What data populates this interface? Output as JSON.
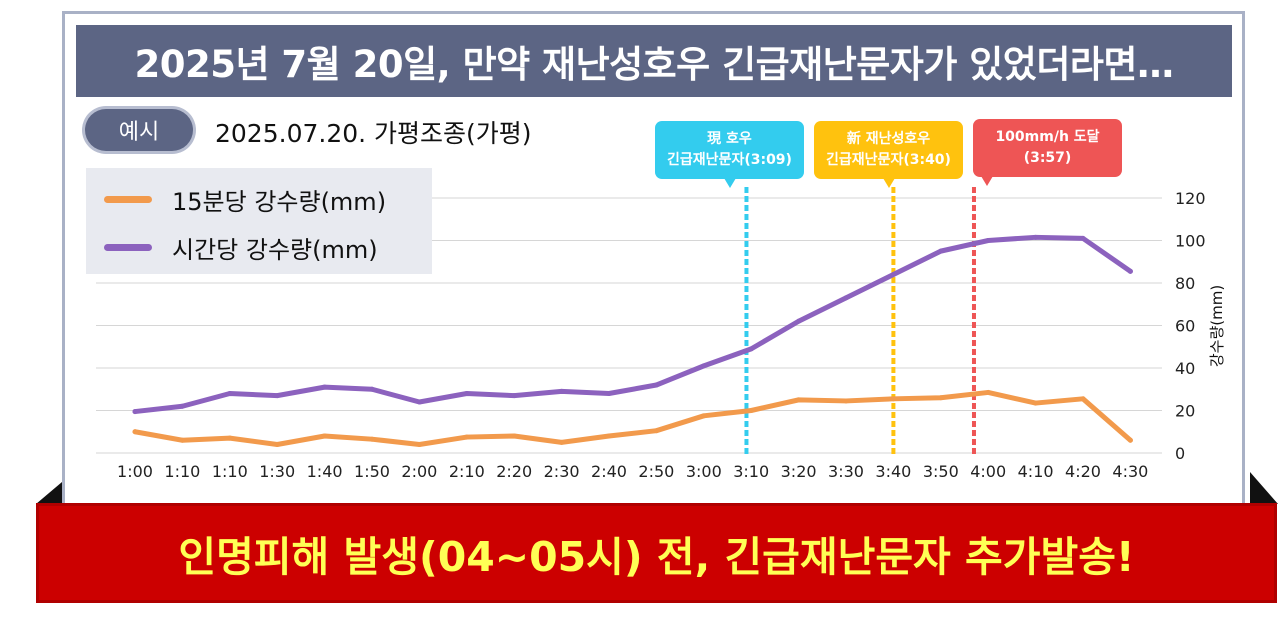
{
  "title": "2025년 7월 20일, 만약 재난성호우 긴급재난문자가 있었더라면…",
  "badge": "예시",
  "subtitle": "2025.07.20. 가평조종(가평)",
  "banner": "인명피해 발생(04~05시) 전, 긴급재난문자 추가발송!",
  "colors": {
    "fifteen_min": "#f29a4c",
    "hourly": "#8c62be",
    "alert_current": "#33ccee",
    "alert_new": "#ffc20e",
    "alert_100mm": "#ee5555",
    "title_bg": "#5c6584",
    "banner_bg": "#cc0000",
    "banner_text": "#ffff55"
  },
  "callouts": [
    {
      "line1": "現 호우",
      "line2": "긴급재난문자(3:09)",
      "x_index": 7.9,
      "color_key": "alert_current"
    },
    {
      "line1": "新 재난성호우",
      "line2": "긴급재난문자(3:40)",
      "x_index": 8.0,
      "color_key": "alert_new"
    },
    {
      "line1": "100mm/h 도달",
      "line2": "(3:57)",
      "x_index": 8.7,
      "color_key": "alert_100mm"
    }
  ],
  "chart_data": {
    "type": "line",
    "categories": [
      "1:00",
      "1:10",
      "1:10",
      "1:30",
      "1:40",
      "1:50",
      "2:00",
      "2:10",
      "2:20",
      "2:30",
      "2:40",
      "2:50",
      "3:00",
      "3:10",
      "3:20",
      "3:30",
      "3:40",
      "3:50",
      "4:00",
      "4:10",
      "4:20",
      "4:30"
    ],
    "series": [
      {
        "name": "15분당 강수량(mm)",
        "values": [
          10,
          6,
          7,
          4,
          8,
          6.5,
          4,
          7.5,
          8,
          5,
          8,
          10.5,
          17.5,
          20,
          25,
          24.5,
          25.5,
          26,
          28.5,
          23.5,
          25.5,
          6
        ]
      },
      {
        "name": "시간당 강수량(mm)",
        "values": [
          19.5,
          22,
          28,
          27,
          31,
          30,
          24,
          28,
          27,
          29,
          28,
          32,
          41,
          49,
          62,
          73,
          84,
          95,
          100,
          101.5,
          101,
          85.5
        ]
      }
    ],
    "ylabel": "강수량(mm)",
    "ylim": [
      0,
      120
    ],
    "yticks": [
      0,
      20,
      40,
      60,
      80,
      100,
      120
    ],
    "y_axis_side": "right",
    "grid": true,
    "legend": "top-left",
    "markers": [
      {
        "time": "3:09",
        "color_key": "alert_current"
      },
      {
        "time": "3:40",
        "color_key": "alert_new"
      },
      {
        "time": "3:57",
        "color_key": "alert_100mm"
      }
    ]
  }
}
